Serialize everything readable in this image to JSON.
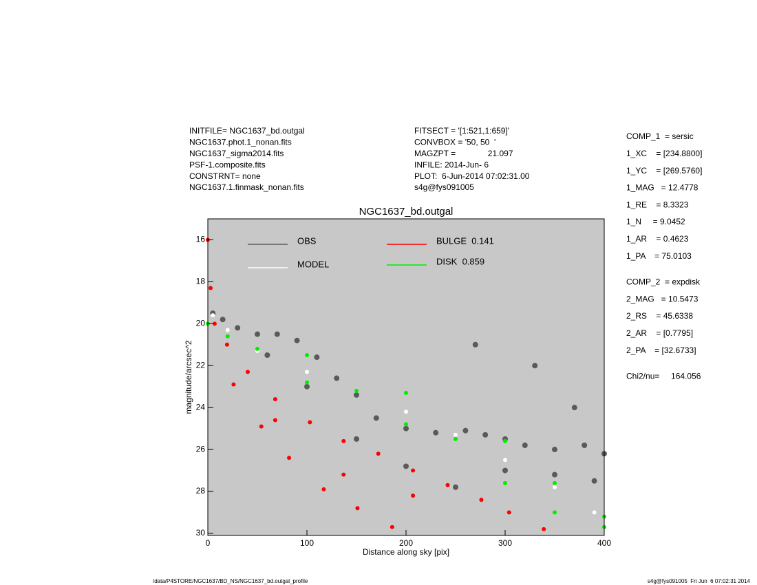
{
  "header_left": [
    "INITFILE= NGC1637_bd.outgal",
    "NGC1637.phot.1_nonan.fits",
    "NGC1637_sigma2014.fits",
    "PSF-1.composite.fits",
    "CONSTRNT= none",
    "NGC1637.1.finmask_nonan.fits"
  ],
  "header_mid": [
    "FITSECT = '[1:521,1:659]'",
    "CONVBOX = '50, 50  '",
    "MAGZPT =              21.097",
    "INFILE: 2014-Jun- 6",
    "PLOT:  6-Jun-2014 07:02:31.00",
    "s4g@fys091005"
  ],
  "params": [
    [
      "COMP_1  = sersic",
      "1_XC    = [234.8800]",
      "1_YC    = [269.5760]",
      "1_MAG   = 12.4778",
      "1_RE    = 8.3323",
      "1_N     = 9.0452",
      "1_AR    = 0.4623",
      "1_PA    = 75.0103"
    ],
    [
      "COMP_2  = expdisk",
      "2_MAG   = 10.5473",
      "2_RS    = 45.6338",
      "2_AR    = [0.7795]",
      "2_PA    = [32.6733]"
    ],
    [
      "Chi2/nu=     164.056"
    ]
  ],
  "footer_left": "/data/P4STORE/NGC1637/BD_NS/NGC1637_bd.outgal_profile",
  "footer_right": "s4g@fys091005  Fri Jun  6 07:02:31 2014",
  "chart_data": {
    "type": "scatter",
    "title": "NGC1637_bd.outgal",
    "x_label": "Distance along sky [pix]",
    "y_label": "magnitude/arcsec^2",
    "xlim": [
      0,
      400
    ],
    "xticks": [
      0,
      100,
      200,
      300,
      400
    ],
    "ylim": [
      15,
      30.1
    ],
    "yticks": [
      16,
      18,
      20,
      22,
      24,
      26,
      28,
      30
    ],
    "background": "#c8c8c8",
    "series": [
      {
        "name": "OBS",
        "color": "#5a5a5a",
        "x": [
          5,
          15,
          30,
          50,
          70,
          90,
          110,
          130,
          150,
          170,
          200,
          230,
          260,
          280,
          300,
          320,
          350,
          380,
          400,
          60,
          100,
          150,
          200,
          250,
          300,
          350,
          390,
          270,
          330,
          370
        ],
        "values": [
          19.5,
          19.8,
          20.2,
          20.5,
          20.5,
          20.8,
          21.6,
          22.6,
          23.4,
          24.5,
          25.0,
          25.2,
          25.1,
          25.3,
          25.5,
          25.8,
          26.0,
          25.8,
          26.2,
          21.5,
          23.0,
          25.5,
          26.8,
          27.8,
          27.0,
          27.2,
          27.5,
          21.0,
          22.0,
          24.0
        ]
      },
      {
        "name": "MODEL",
        "color": "#ffffff",
        "x": [
          5,
          20,
          50,
          100,
          150,
          200,
          250,
          300,
          350,
          390
        ],
        "values": [
          19.6,
          20.3,
          21.3,
          22.3,
          23.2,
          24.2,
          25.3,
          26.5,
          27.8,
          29.0
        ]
      },
      {
        "name": "BULGE  0.141",
        "color": "#ff0000",
        "x": [
          0,
          2.8,
          6.9,
          19.4,
          40.3,
          68,
          103,
          137,
          172,
          207,
          242,
          276,
          304,
          339,
          26,
          54,
          82,
          117,
          151,
          186,
          68,
          137,
          207
        ],
        "values": [
          16.0,
          18.3,
          20.0,
          21.0,
          22.3,
          23.6,
          24.7,
          25.6,
          26.2,
          27.0,
          27.7,
          28.4,
          29.0,
          29.8,
          22.9,
          24.9,
          26.4,
          27.9,
          28.8,
          29.7,
          24.6,
          27.2,
          28.2
        ]
      },
      {
        "name": "DISK  0.859",
        "color": "#00ee00",
        "x": [
          0,
          100,
          200,
          300,
          400,
          20,
          100,
          200,
          300,
          350,
          400,
          50,
          150,
          250,
          350
        ],
        "values": [
          20.0,
          21.5,
          23.3,
          25.6,
          29.2,
          20.6,
          22.8,
          24.8,
          27.6,
          29.0,
          29.7,
          21.2,
          23.2,
          25.5,
          27.6
        ]
      }
    ]
  }
}
